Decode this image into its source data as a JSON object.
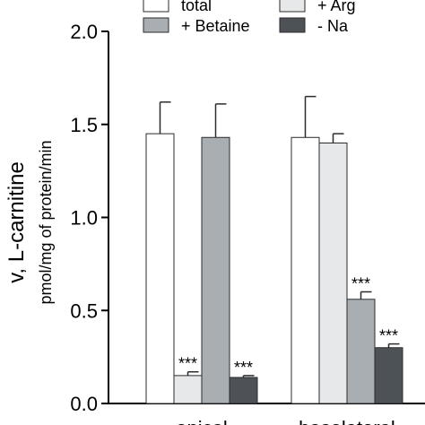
{
  "chart_data": {
    "type": "bar",
    "ylabel_main": "v, L-carnitine",
    "ylabel_unit": "pmol/mg of protein/min",
    "categories": [
      "apical",
      "basolateral"
    ],
    "ylim": [
      0.0,
      2.0
    ],
    "yticks": [
      "0.0",
      "0.5",
      "1.0",
      "1.5",
      "2.0"
    ],
    "series": [
      {
        "name": "total",
        "color": "#ffffff",
        "values": [
          1.45,
          1.43
        ],
        "errors": [
          0.17,
          0.22
        ],
        "annotations": [
          "",
          ""
        ]
      },
      {
        "name": "+ Arg",
        "color": "#e6e8ea",
        "values": [
          0.15,
          1.4
        ],
        "errors": [
          0.02,
          0.05
        ],
        "annotations": [
          "***",
          ""
        ]
      },
      {
        "name": "+ Betaine",
        "color": "#a9aeb3",
        "values": [
          1.43,
          0.56
        ],
        "errors": [
          0.18,
          0.04
        ],
        "annotations": [
          "",
          "***"
        ]
      },
      {
        "name": "- Na",
        "color": "#4d5257",
        "values": [
          0.14,
          0.3
        ],
        "errors": [
          0.01,
          0.02
        ],
        "annotations": [
          "***",
          "***"
        ]
      }
    ],
    "legend_position": "top",
    "grid": false
  }
}
